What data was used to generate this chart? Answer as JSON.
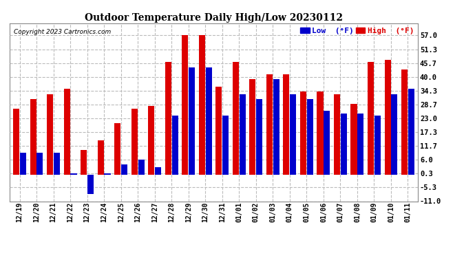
{
  "title": "Outdoor Temperature Daily High/Low 20230112",
  "copyright": "Copyright 2023 Cartronics.com",
  "legend_low": "Low  (°F)",
  "legend_high": "High  (°F)",
  "low_color": "#0000cc",
  "high_color": "#dd0000",
  "background_color": "#ffffff",
  "ylim": [
    -11.0,
    62.0
  ],
  "yticks": [
    -11.0,
    -5.3,
    0.3,
    6.0,
    11.7,
    17.3,
    23.0,
    28.7,
    34.3,
    40.0,
    45.7,
    51.3,
    57.0
  ],
  "dates": [
    "12/19",
    "12/20",
    "12/21",
    "12/22",
    "12/23",
    "12/24",
    "12/25",
    "12/26",
    "12/27",
    "12/28",
    "12/29",
    "12/30",
    "12/31",
    "01/01",
    "01/02",
    "01/03",
    "01/04",
    "01/05",
    "01/06",
    "01/07",
    "01/08",
    "01/09",
    "01/10",
    "01/11"
  ],
  "highs": [
    27,
    31,
    33,
    35,
    10,
    14,
    21,
    27,
    28,
    46,
    57,
    57,
    36,
    46,
    39,
    41,
    41,
    34,
    34,
    33,
    29,
    46,
    47,
    43
  ],
  "lows": [
    9,
    9,
    9,
    0.5,
    -8,
    0.5,
    4,
    6,
    3,
    24,
    44,
    44,
    24,
    33,
    31,
    39,
    33,
    31,
    26,
    25,
    25,
    24,
    33,
    35
  ]
}
